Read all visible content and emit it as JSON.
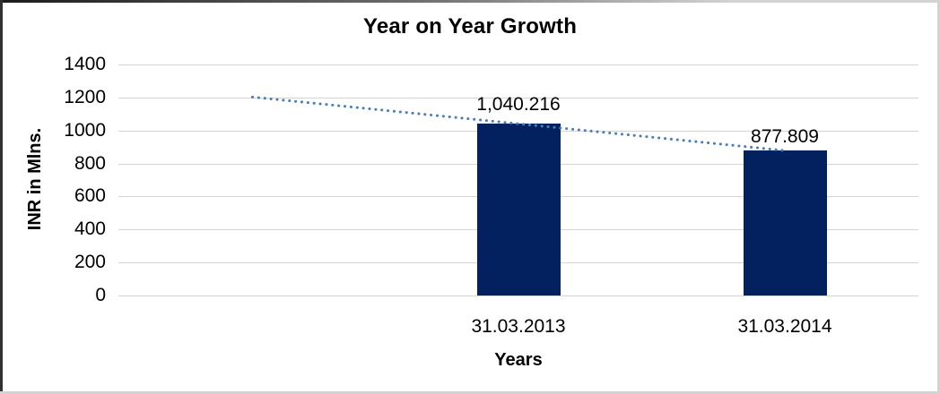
{
  "chart_data": {
    "type": "bar",
    "title": "Year on Year Growth",
    "xlabel": "Years",
    "ylabel": "INR in Mlns.",
    "categories": [
      "31.03.2013",
      "31.03.2014"
    ],
    "values": [
      1040.216,
      877.809
    ],
    "data_labels": [
      "1,040.216",
      "877.809"
    ],
    "ylim": [
      0,
      1400
    ],
    "ytick_interval": 200,
    "ytick_labels": [
      "1400",
      "1200",
      "1000",
      "800",
      "600",
      "400",
      "200",
      "0"
    ],
    "grid": "horizontal",
    "legend": "none",
    "bar_color": "#03215f",
    "background_color": "#ffffff",
    "gridline_color": "#d4d4d4",
    "trendline": {
      "type": "linear",
      "style": "dotted",
      "color": "#4a7ebb",
      "start_value": 1202.62,
      "end_value": 877.809,
      "note": "dotted linear trendline extending one category slot left of first bar"
    }
  }
}
